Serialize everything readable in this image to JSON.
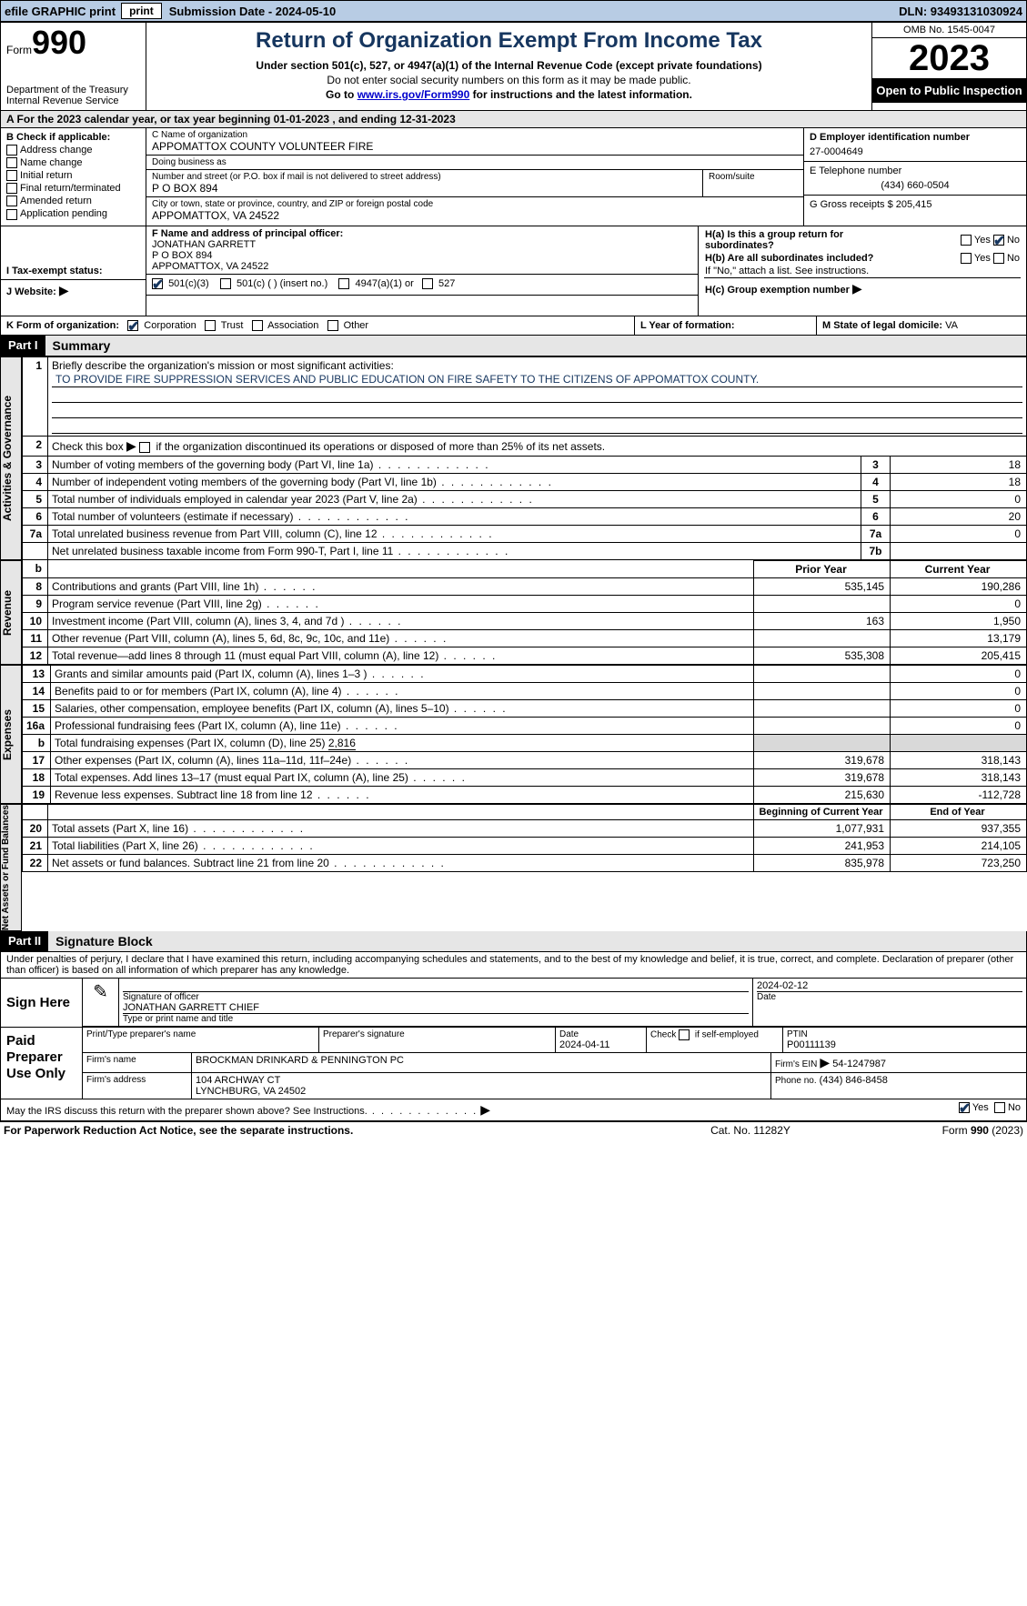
{
  "topbar": {
    "efile": "efile GRAPHIC print",
    "sub_label": "Submission Date - 2024-05-10",
    "dln": "DLN: 93493131030924"
  },
  "header": {
    "form_prefix": "Form",
    "form_num": "990",
    "dept": "Department of the Treasury Internal Revenue Service",
    "title": "Return of Organization Exempt From Income Tax",
    "sub1": "Under section 501(c), 527, or 4947(a)(1) of the Internal Revenue Code (except private foundations)",
    "note1": "Do not enter social security numbers on this form as it may be made public.",
    "note2_pre": "Go to ",
    "note2_link": "www.irs.gov/Form990",
    "note2_post": " for instructions and the latest information.",
    "omb": "OMB No. 1545-0047",
    "year": "2023",
    "open": "Open to Public Inspection"
  },
  "sectionA": {
    "text": "A For the 2023 calendar year, or tax year beginning 01-01-2023    , and ending 12-31-2023"
  },
  "colB": {
    "heading": "B Check if applicable:",
    "opts": [
      "Address change",
      "Name change",
      "Initial return",
      "Final return/terminated",
      "Amended return",
      "Application pending"
    ]
  },
  "colC": {
    "name_lbl": "C Name of organization",
    "name": "APPOMATTOX COUNTY VOLUNTEER FIRE",
    "dba_lbl": "Doing business as",
    "dba": "",
    "addr_lbl": "Number and street (or P.O. box if mail is not delivered to street address)",
    "addr": "P O BOX 894",
    "room_lbl": "Room/suite",
    "city_lbl": "City or town, state or province, country, and ZIP or foreign postal code",
    "city": "APPOMATTOX, VA  24522"
  },
  "colD": {
    "ein_lbl": "D Employer identification number",
    "ein": "27-0004649",
    "phone_lbl": "E Telephone number",
    "phone": "(434) 660-0504",
    "gross_lbl": "G Gross receipts $",
    "gross": "205,415"
  },
  "rowF": {
    "f_lbl": "F  Name and address of principal officer:",
    "f_name": "JONATHAN GARRETT",
    "f_addr1": "P O BOX 894",
    "f_addr2": "APPOMATTOX, VA  24522",
    "i_label": "I  Tax-exempt status:",
    "i_501c3": "501(c)(3)",
    "i_501c": "501(c) (  ) (insert no.)",
    "i_4947": "4947(a)(1) or",
    "i_527": "527",
    "j_label": "J  Website:",
    "j_arrow": "▶",
    "ha_lbl": "H(a)  Is this a group return for subordinates?",
    "hb_lbl": "H(b)  Are all subordinates included?",
    "h_note": "If \"No,\" attach a list. See instructions.",
    "hc_lbl": "H(c)  Group exemption number",
    "hc_arrow": "▶",
    "yes": "Yes",
    "no": "No"
  },
  "rowK": {
    "k_lbl": "K Form of organization:",
    "corp": "Corporation",
    "trust": "Trust",
    "assoc": "Association",
    "other": "Other",
    "l_lbl": "L Year of formation:",
    "l_val": "",
    "m_lbl": "M State of legal domicile:",
    "m_val": "VA"
  },
  "part1": {
    "tag": "Part I",
    "title": "Summary",
    "activities_label": "Activities & Governance",
    "revenue_label": "Revenue",
    "expenses_label": "Expenses",
    "netassets_label": "Net Assets or Fund Balances",
    "line1_lbl": "Briefly describe the organization's mission or most significant activities:",
    "line1_val": "TO PROVIDE FIRE SUPPRESSION SERVICES AND PUBLIC EDUCATION ON FIRE SAFETY TO THE CITIZENS OF APPOMATTOX COUNTY.",
    "line2": "Check this box       if the organization discontinued its operations or disposed of more than 25% of its net assets.",
    "rows_ag": [
      {
        "n": "3",
        "lbl": "Number of voting members of the governing body (Part VI, line 1a)",
        "box": "3",
        "val": "18"
      },
      {
        "n": "4",
        "lbl": "Number of independent voting members of the governing body (Part VI, line 1b)",
        "box": "4",
        "val": "18"
      },
      {
        "n": "5",
        "lbl": "Total number of individuals employed in calendar year 2023 (Part V, line 2a)",
        "box": "5",
        "val": "0"
      },
      {
        "n": "6",
        "lbl": "Total number of volunteers (estimate if necessary)",
        "box": "6",
        "val": "20"
      },
      {
        "n": "7a",
        "lbl": "Total unrelated business revenue from Part VIII, column (C), line 12",
        "box": "7a",
        "val": "0"
      },
      {
        "n": "",
        "lbl": "Net unrelated business taxable income from Form 990-T, Part I, line 11",
        "box": "7b",
        "val": ""
      }
    ],
    "col_prior": "Prior Year",
    "col_current": "Current Year",
    "col_begin": "Beginning of Current Year",
    "col_end": "End of Year",
    "rows_rev": [
      {
        "n": "8",
        "lbl": "Contributions and grants (Part VIII, line 1h)",
        "p": "535,145",
        "c": "190,286"
      },
      {
        "n": "9",
        "lbl": "Program service revenue (Part VIII, line 2g)",
        "p": "",
        "c": "0"
      },
      {
        "n": "10",
        "lbl": "Investment income (Part VIII, column (A), lines 3, 4, and 7d )",
        "p": "163",
        "c": "1,950"
      },
      {
        "n": "11",
        "lbl": "Other revenue (Part VIII, column (A), lines 5, 6d, 8c, 9c, 10c, and 11e)",
        "p": "",
        "c": "13,179"
      },
      {
        "n": "12",
        "lbl": "Total revenue—add lines 8 through 11 (must equal Part VIII, column (A), line 12)",
        "p": "535,308",
        "c": "205,415"
      }
    ],
    "rows_exp": [
      {
        "n": "13",
        "lbl": "Grants and similar amounts paid (Part IX, column (A), lines 1–3 )",
        "p": "",
        "c": "0"
      },
      {
        "n": "14",
        "lbl": "Benefits paid to or for members (Part IX, column (A), line 4)",
        "p": "",
        "c": "0"
      },
      {
        "n": "15",
        "lbl": "Salaries, other compensation, employee benefits (Part IX, column (A), lines 5–10)",
        "p": "",
        "c": "0"
      },
      {
        "n": "16a",
        "lbl": "Professional fundraising fees (Part IX, column (A), line 11e)",
        "p": "",
        "c": "0"
      }
    ],
    "line16b_lbl": "Total fundraising expenses (Part IX, column (D), line 25)",
    "line16b_val": "2,816",
    "rows_exp2": [
      {
        "n": "17",
        "lbl": "Other expenses (Part IX, column (A), lines 11a–11d, 11f–24e)",
        "p": "319,678",
        "c": "318,143"
      },
      {
        "n": "18",
        "lbl": "Total expenses. Add lines 13–17 (must equal Part IX, column (A), line 25)",
        "p": "319,678",
        "c": "318,143"
      },
      {
        "n": "19",
        "lbl": "Revenue less expenses. Subtract line 18 from line 12",
        "p": "215,630",
        "c": "-112,728"
      }
    ],
    "rows_na": [
      {
        "n": "20",
        "lbl": "Total assets (Part X, line 16)",
        "p": "1,077,931",
        "c": "937,355"
      },
      {
        "n": "21",
        "lbl": "Total liabilities (Part X, line 26)",
        "p": "241,953",
        "c": "214,105"
      },
      {
        "n": "22",
        "lbl": "Net assets or fund balances. Subtract line 21 from line 20",
        "p": "835,978",
        "c": "723,250"
      }
    ]
  },
  "part2": {
    "tag": "Part II",
    "title": "Signature Block",
    "perjury": "Under penalties of perjury, I declare that I have examined this return, including accompanying schedules and statements, and to the best of my knowledge and belief, it is true, correct, and complete. Declaration of preparer (other than officer) is based on all information of which preparer has any knowledge.",
    "sign_here": "Sign Here",
    "sig_officer_lbl": "Signature of officer",
    "sig_officer_name": "JONATHAN GARRETT  CHIEF",
    "sig_type_lbl": "Type or print name and title",
    "sig_date_lbl": "Date",
    "sig_date": "2024-02-12",
    "paid_label": "Paid Preparer Use Only",
    "prep_name_lbl": "Print/Type preparer's name",
    "prep_sig_lbl": "Preparer's signature",
    "prep_date_lbl": "Date",
    "prep_date": "2024-04-11",
    "prep_self_lbl": "Check       if self-employed",
    "ptin_lbl": "PTIN",
    "ptin": "P00111139",
    "firm_name_lbl": "Firm's name",
    "firm_name": "BROCKMAN DRINKARD & PENNINGTON PC",
    "firm_ein_lbl": "Firm's EIN",
    "firm_ein": "54-1247987",
    "firm_addr_lbl": "Firm's address",
    "firm_addr1": "104 ARCHWAY CT",
    "firm_addr2": "LYNCHBURG, VA  24502",
    "firm_phone_lbl": "Phone no.",
    "firm_phone": "(434) 846-8458",
    "discuss": "May the IRS discuss this return with the preparer shown above? See Instructions.",
    "yes": "Yes",
    "no": "No"
  },
  "footer": {
    "pra": "For Paperwork Reduction Act Notice, see the separate instructions.",
    "cat": "Cat. No. 11282Y",
    "form": "Form 990 (2023)"
  }
}
